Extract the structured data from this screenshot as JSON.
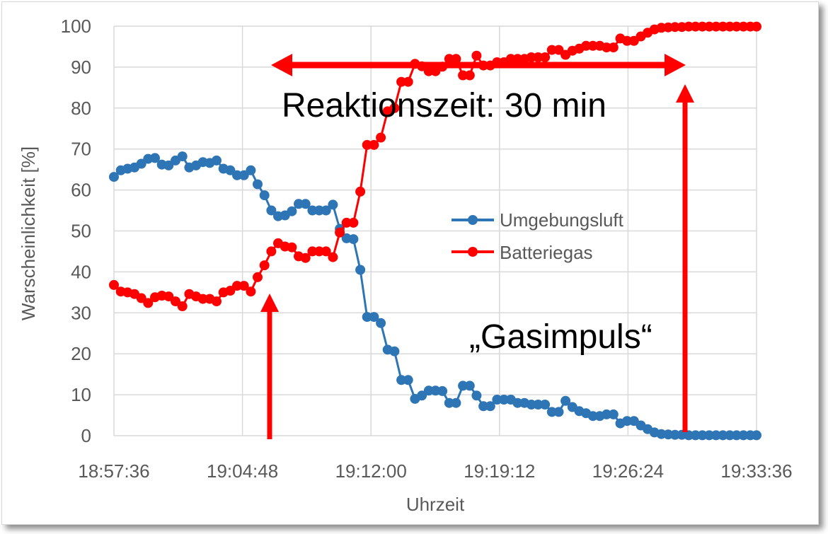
{
  "chart_data": {
    "type": "line",
    "title": "",
    "xlabel": "Uhrzeit",
    "ylabel": "Warscheinlichkeit [%]",
    "xlim": [
      "18:57:36",
      "19:33:36"
    ],
    "ylim": [
      0,
      100
    ],
    "x_ticks": [
      "18:57:36",
      "19:04:48",
      "19:12:00",
      "19:19:12",
      "19:26:24",
      "19:33:36"
    ],
    "y_ticks": [
      "0",
      "10",
      "20",
      "30",
      "40",
      "50",
      "60",
      "70",
      "80",
      "90",
      "100"
    ],
    "grid": "vertical and horizontal major gridlines",
    "legend_position": "right, middle",
    "series": [
      {
        "name": "Umgebungsluft",
        "color": "#2E75B6",
        "marker": "circle",
        "x": [
          "18:57:36",
          "18:57:59",
          "18:58:22",
          "18:58:45",
          "18:59:08",
          "18:59:31",
          "18:59:54",
          "19:00:17",
          "19:00:40",
          "19:01:03",
          "19:01:26",
          "19:01:49",
          "19:02:12",
          "19:02:35",
          "19:02:58",
          "19:03:21",
          "19:03:44",
          "19:04:07",
          "19:04:30",
          "19:04:53",
          "19:05:16",
          "19:05:39",
          "19:06:02",
          "19:06:25",
          "19:06:48",
          "19:07:11",
          "19:07:34",
          "19:07:57",
          "19:08:20",
          "19:08:43",
          "19:09:06",
          "19:09:29",
          "19:09:52",
          "19:10:15",
          "19:10:38",
          "19:11:01",
          "19:11:24",
          "19:11:47",
          "19:12:10",
          "19:12:33",
          "19:12:56",
          "19:13:19",
          "19:13:42",
          "19:14:05",
          "19:14:28",
          "19:14:51",
          "19:15:14",
          "19:15:37",
          "19:16:00",
          "19:16:23",
          "19:16:46",
          "19:17:09",
          "19:17:32",
          "19:17:55",
          "19:18:18",
          "19:18:41",
          "19:19:04",
          "19:19:27",
          "19:19:50",
          "19:20:13",
          "19:20:36",
          "19:20:59",
          "19:21:22",
          "19:21:45",
          "19:22:08",
          "19:22:31",
          "19:22:54",
          "19:23:17",
          "19:23:40",
          "19:24:03",
          "19:24:26",
          "19:24:49",
          "19:25:12",
          "19:25:35",
          "19:25:58",
          "19:26:21",
          "19:26:44",
          "19:27:07",
          "19:27:30",
          "19:27:53",
          "19:28:16",
          "19:28:39",
          "19:29:02",
          "19:29:25",
          "19:29:48",
          "19:30:11",
          "19:30:34",
          "19:30:57",
          "19:31:20",
          "19:31:43",
          "19:32:06",
          "19:32:29",
          "19:32:52",
          "19:33:15",
          "19:33:36"
        ],
        "y": [
          63.2,
          64.8,
          65.2,
          65.5,
          66.4,
          67.6,
          67.8,
          66.2,
          66.0,
          67.2,
          68.2,
          65.5,
          66.0,
          66.8,
          66.6,
          67.2,
          65.2,
          64.8,
          63.6,
          63.6,
          64.8,
          61.4,
          58.7,
          55.0,
          53.6,
          53.8,
          54.8,
          56.6,
          56.6,
          55.0,
          55.0,
          55.0,
          56.4,
          50.5,
          48.2,
          48.0,
          40.5,
          29.0,
          29.0,
          27.5,
          21.0,
          20.6,
          13.6,
          13.6,
          9.0,
          9.8,
          11.0,
          11.0,
          10.9,
          8.0,
          8.0,
          12.2,
          12.2,
          9.8,
          7.2,
          7.2,
          8.8,
          8.8,
          8.8,
          8.0,
          8.0,
          7.6,
          7.6,
          7.6,
          5.8,
          5.8,
          8.5,
          7.0,
          6.0,
          5.5,
          4.8,
          4.8,
          5.2,
          5.2,
          3.0,
          3.6,
          3.6,
          2.5,
          1.6,
          0.8,
          0.4,
          0.3,
          0.2,
          0.2,
          0.1,
          0.1,
          0.1,
          0.1,
          0.1,
          0.1,
          0.1,
          0.1,
          0.1,
          0.1,
          0.1
        ]
      },
      {
        "name": "Batteriegas",
        "color": "#FF0000",
        "marker": "circle",
        "x": [
          "18:57:36",
          "18:57:59",
          "18:58:22",
          "18:58:45",
          "18:59:08",
          "18:59:31",
          "18:59:54",
          "19:00:17",
          "19:00:40",
          "19:01:03",
          "19:01:26",
          "19:01:49",
          "19:02:12",
          "19:02:35",
          "19:02:58",
          "19:03:21",
          "19:03:44",
          "19:04:07",
          "19:04:30",
          "19:04:53",
          "19:05:16",
          "19:05:39",
          "19:06:02",
          "19:06:25",
          "19:06:48",
          "19:07:11",
          "19:07:34",
          "19:07:57",
          "19:08:20",
          "19:08:43",
          "19:09:06",
          "19:09:29",
          "19:09:52",
          "19:10:15",
          "19:10:38",
          "19:11:01",
          "19:11:24",
          "19:11:47",
          "19:12:10",
          "19:12:33",
          "19:12:56",
          "19:13:19",
          "19:13:42",
          "19:14:05",
          "19:14:28",
          "19:14:51",
          "19:15:14",
          "19:15:37",
          "19:16:00",
          "19:16:23",
          "19:16:46",
          "19:17:09",
          "19:17:32",
          "19:17:55",
          "19:18:18",
          "19:18:41",
          "19:19:04",
          "19:19:27",
          "19:19:50",
          "19:20:13",
          "19:20:36",
          "19:20:59",
          "19:21:22",
          "19:21:45",
          "19:22:08",
          "19:22:31",
          "19:22:54",
          "19:23:17",
          "19:23:40",
          "19:24:03",
          "19:24:26",
          "19:24:49",
          "19:25:12",
          "19:25:35",
          "19:25:58",
          "19:26:21",
          "19:26:44",
          "19:27:07",
          "19:27:30",
          "19:27:53",
          "19:28:16",
          "19:28:39",
          "19:29:02",
          "19:29:25",
          "19:29:48",
          "19:30:11",
          "19:30:34",
          "19:30:57",
          "19:31:20",
          "19:31:43",
          "19:32:06",
          "19:32:29",
          "19:32:52",
          "19:33:15",
          "19:33:36"
        ],
        "y": [
          36.8,
          35.2,
          35.0,
          34.6,
          33.6,
          32.4,
          33.8,
          34.2,
          34.0,
          32.8,
          31.6,
          34.6,
          34.0,
          33.4,
          33.4,
          32.8,
          35.0,
          35.4,
          36.6,
          36.6,
          35.2,
          38.7,
          41.6,
          45.0,
          47.0,
          46.2,
          46.0,
          43.8,
          43.4,
          45.0,
          45.0,
          45.0,
          43.6,
          49.6,
          52.0,
          52.0,
          59.6,
          71.0,
          71.0,
          72.8,
          79.2,
          80.0,
          86.4,
          86.4,
          90.8,
          90.2,
          89.0,
          89.0,
          90.1,
          92.0,
          92.0,
          88.0,
          88.0,
          92.8,
          90.4,
          90.4,
          91.2,
          91.2,
          92.0,
          92.0,
          92.0,
          92.4,
          92.4,
          92.4,
          94.2,
          94.2,
          93.0,
          94.0,
          94.5,
          95.2,
          95.2,
          95.2,
          94.8,
          94.8,
          97.0,
          96.4,
          96.4,
          97.5,
          98.4,
          99.2,
          99.6,
          99.7,
          99.8,
          99.8,
          99.9,
          99.9,
          99.9,
          99.9,
          99.9,
          99.9,
          99.9,
          99.9,
          99.9,
          99.9,
          99.9
        ]
      }
    ],
    "annotations": {
      "reaction_time": "Reaktionszeit: 30 min",
      "gas_pulse": "„Gasimpuls“",
      "annotation_color": "#FF0000"
    }
  }
}
